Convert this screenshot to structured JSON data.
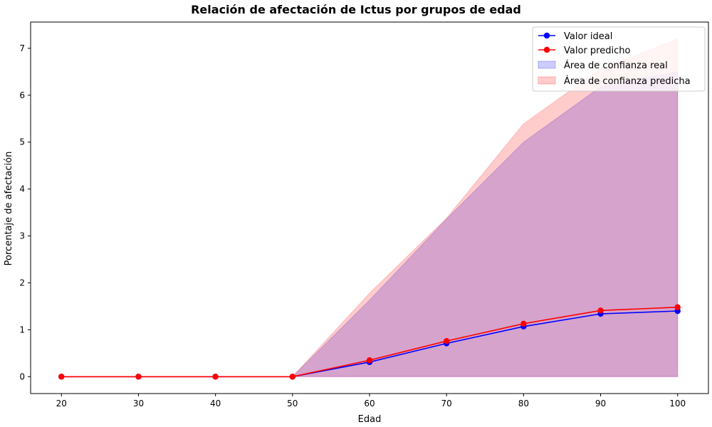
{
  "chart_data": {
    "type": "line",
    "title": "Relación de afectación de Ictus por grupos de edad",
    "xlabel": "Edad",
    "ylabel": "Porcentaje de afectación",
    "x": [
      20,
      30,
      40,
      50,
      60,
      70,
      80,
      90,
      100
    ],
    "xticks": [
      "20",
      "30",
      "40",
      "50",
      "60",
      "70",
      "80",
      "90",
      "100"
    ],
    "yticks": [
      "0",
      "1",
      "2",
      "3",
      "4",
      "5",
      "6",
      "7"
    ],
    "xlim": [
      16.0,
      104.0
    ],
    "ylim": [
      -0.36,
      7.56
    ],
    "series": [
      {
        "name": "Valor ideal",
        "color": "#0000ff",
        "values": [
          0,
          0,
          0,
          0,
          0.31,
          0.71,
          1.07,
          1.34,
          1.4
        ]
      },
      {
        "name": "Valor predicho",
        "color": "#ff0000",
        "values": [
          0,
          0,
          0,
          0,
          0.35,
          0.76,
          1.13,
          1.41,
          1.48
        ]
      }
    ],
    "bands": [
      {
        "name": "Área de confianza real",
        "color": "#0000ff",
        "lower": [
          0,
          0,
          0,
          0,
          0,
          0,
          0,
          0,
          0
        ],
        "upper": [
          0,
          0,
          0,
          0,
          1.63,
          3.36,
          5.0,
          6.18,
          6.5
        ]
      },
      {
        "name": "Área de confianza predicha",
        "color": "#ff0000",
        "lower": [
          0,
          0,
          0,
          0,
          0,
          0,
          0,
          0,
          0
        ],
        "upper": [
          0,
          0,
          0,
          0,
          1.78,
          3.38,
          5.39,
          6.56,
          7.2
        ]
      }
    ],
    "legend_position": "top-right",
    "grid": false
  }
}
